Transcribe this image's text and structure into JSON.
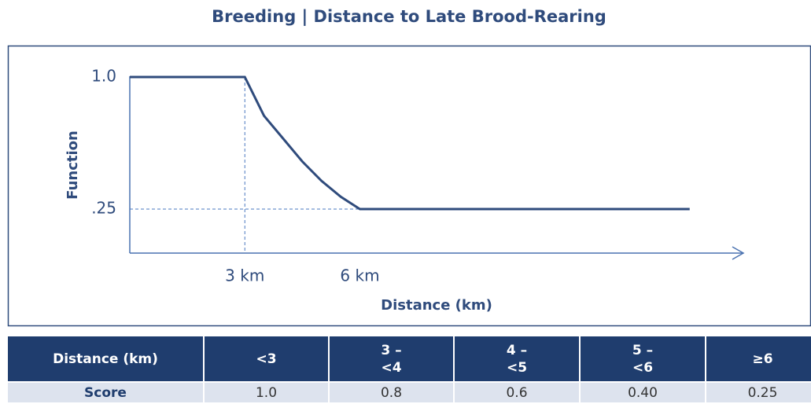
{
  "chart_data": {
    "type": "line",
    "title": "Breeding | Distance to Late Brood-Rearing",
    "x_label": "Distance (km)",
    "y_label": "Function",
    "x": [
      0,
      3,
      3.5,
      4,
      4.5,
      5,
      5.5,
      6,
      14.6
    ],
    "series": [
      {
        "name": "Function",
        "color": "#2f4b7c",
        "values": [
          1,
          1,
          0.78,
          0.65,
          0.52,
          0.41,
          0.32,
          0.25,
          0.25
        ]
      }
    ],
    "xlim": [
      0,
      16
    ],
    "ylim": [
      0,
      1
    ],
    "xticks": [
      {
        "value": 3,
        "label": "3 km"
      },
      {
        "value": 6,
        "label": "6 km"
      }
    ],
    "yticks": [
      {
        "value": 1,
        "label": "1.0"
      },
      {
        "value": 0.25,
        "label": ".25"
      }
    ]
  },
  "table": {
    "header": [
      "Distance (km)",
      "<3",
      "3 – <4",
      "4 – <5",
      "5 – <6",
      "≥6"
    ],
    "rows": [
      [
        "Score",
        "1.0",
        "0.8",
        "0.6",
        "0.40",
        "0.25"
      ]
    ]
  }
}
